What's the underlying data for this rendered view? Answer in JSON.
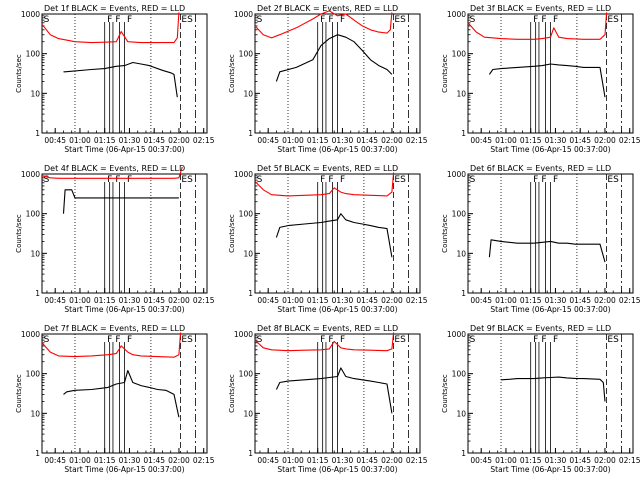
{
  "chart_data": {
    "type": "line",
    "y_scale": "log",
    "ylim": [
      1,
      1000
    ],
    "y_tick_labels": [
      "1",
      "10",
      "100",
      "1000"
    ],
    "x_unit": "minutes after 00:37:00",
    "xlim": [
      0,
      100
    ],
    "x_ticks": [
      8,
      23,
      38,
      53,
      68,
      83,
      98
    ],
    "x_tick_labels": [
      "00:45",
      "01:00",
      "01:15",
      "01:30",
      "01:45",
      "02:00",
      "02:15"
    ],
    "xlabel": "Start Time (06-Apr-15 00:37:00)",
    "ylabel": "Counts/sec",
    "markers": {
      "dotted_lines": [
        20,
        66
      ],
      "dashed_lines": [
        84,
        93
      ],
      "solid_lines": [
        38,
        41,
        43,
        47,
        50
      ]
    },
    "colors": {
      "events": "#000000",
      "lld": "#ff0000"
    },
    "panels": [
      {
        "title": "Det 1f BLACK = Events, RED = LLD",
        "markers": [
          "S",
          "F",
          "F",
          "F",
          "ES"
        ],
        "events": {
          "x": [
            13,
            14,
            30,
            38,
            45,
            50,
            55,
            60,
            65,
            73,
            78,
            80,
            82
          ],
          "y": [
            35,
            35,
            40,
            42,
            48,
            50,
            60,
            55,
            50,
            38,
            33,
            30,
            8
          ]
        },
        "lld": {
          "x": [
            0,
            5,
            10,
            20,
            30,
            38,
            45,
            48,
            52,
            60,
            65,
            72,
            80,
            82,
            83
          ],
          "y": [
            550,
            300,
            240,
            200,
            190,
            195,
            200,
            360,
            200,
            190,
            190,
            190,
            190,
            250,
            1100
          ]
        }
      },
      {
        "title": "Det 2f BLACK = Events, RED = LLD",
        "markers": [
          "S",
          "F",
          "F",
          "F",
          "ES"
        ],
        "events": {
          "x": [
            13,
            15,
            25,
            35,
            40,
            45,
            50,
            55,
            60,
            65,
            70,
            75,
            80,
            83
          ],
          "y": [
            20,
            35,
            45,
            70,
            160,
            240,
            300,
            260,
            200,
            120,
            70,
            50,
            40,
            30
          ]
        },
        "lld": {
          "x": [
            0,
            5,
            10,
            15,
            25,
            35,
            40,
            45,
            50,
            55,
            60,
            65,
            70,
            75,
            80,
            82,
            83
          ],
          "y": [
            500,
            300,
            250,
            300,
            450,
            750,
            1000,
            1200,
            900,
            1000,
            700,
            500,
            400,
            350,
            330,
            400,
            1100
          ]
        }
      },
      {
        "title": "Det 3f BLACK = Events, RED = LLD",
        "markers": [
          "S",
          "F",
          "F",
          "F",
          "ES"
        ],
        "events": {
          "x": [
            13,
            15,
            20,
            30,
            40,
            45,
            50,
            55,
            60,
            65,
            70,
            75,
            80,
            83
          ],
          "y": [
            30,
            40,
            42,
            45,
            48,
            50,
            55,
            52,
            50,
            48,
            45,
            45,
            45,
            8
          ]
        },
        "lld": {
          "x": [
            0,
            5,
            10,
            20,
            30,
            40,
            45,
            50,
            52,
            55,
            60,
            70,
            80,
            83,
            84
          ],
          "y": [
            600,
            350,
            260,
            240,
            230,
            230,
            240,
            260,
            450,
            260,
            240,
            230,
            230,
            300,
            1100
          ]
        }
      },
      {
        "title": "Det 4f BLACK = Events, RED = LLD",
        "markers": [
          "S",
          "F",
          "F",
          "F",
          "ES"
        ],
        "events": {
          "x": [
            13,
            14,
            18,
            20,
            30,
            40,
            50,
            60,
            70,
            80,
            83
          ],
          "y": [
            100,
            400,
            400,
            250,
            250,
            250,
            250,
            250,
            250,
            250,
            250
          ]
        },
        "lld": {
          "x": [
            0,
            5,
            10,
            20,
            30,
            40,
            50,
            60,
            70,
            80,
            83,
            85
          ],
          "y": [
            900,
            800,
            780,
            780,
            780,
            780,
            780,
            780,
            780,
            780,
            800,
            1500
          ]
        }
      },
      {
        "title": "Det 5f BLACK = Events, RED = LLD",
        "markers": [
          "S",
          "F",
          "F",
          "F",
          "ES"
        ],
        "events": {
          "x": [
            13,
            15,
            20,
            30,
            40,
            45,
            50,
            52,
            55,
            60,
            65,
            70,
            75,
            80,
            83
          ],
          "y": [
            25,
            45,
            50,
            55,
            60,
            65,
            70,
            100,
            70,
            60,
            55,
            50,
            45,
            42,
            8
          ]
        },
        "lld": {
          "x": [
            0,
            5,
            10,
            20,
            30,
            40,
            45,
            48,
            52,
            55,
            60,
            70,
            80,
            83,
            84
          ],
          "y": [
            650,
            400,
            300,
            280,
            290,
            300,
            320,
            450,
            350,
            320,
            300,
            290,
            280,
            350,
            1100
          ]
        }
      },
      {
        "title": "Det 6f BLACK = Events, RED = LLD",
        "markers": [
          "S",
          "F",
          "F",
          "F",
          "ES"
        ],
        "events": {
          "x": [
            13,
            14,
            20,
            30,
            40,
            45,
            50,
            55,
            60,
            65,
            70,
            75,
            80,
            83
          ],
          "y": [
            8,
            22,
            20,
            18,
            18,
            19,
            20,
            18,
            18,
            17,
            17,
            17,
            17,
            6
          ]
        },
        "lld": {
          "x": [],
          "y": []
        }
      },
      {
        "title": "Det 7f BLACK = Events, RED = LLD",
        "markers": [
          "S",
          "F",
          "F",
          "F",
          "ES"
        ],
        "events": {
          "x": [
            13,
            15,
            20,
            30,
            40,
            45,
            50,
            52,
            55,
            60,
            65,
            70,
            75,
            80,
            83
          ],
          "y": [
            30,
            35,
            38,
            40,
            45,
            55,
            60,
            120,
            60,
            50,
            45,
            40,
            38,
            30,
            8
          ]
        },
        "lld": {
          "x": [
            0,
            5,
            10,
            20,
            30,
            40,
            45,
            48,
            52,
            55,
            60,
            70,
            80,
            83,
            84
          ],
          "y": [
            600,
            350,
            280,
            270,
            280,
            300,
            320,
            500,
            350,
            300,
            280,
            270,
            260,
            300,
            1100
          ]
        }
      },
      {
        "title": "Det 8f BLACK = Events, RED = LLD",
        "markers": [
          "S",
          "F",
          "F",
          "F",
          "ES"
        ],
        "events": {
          "x": [
            13,
            15,
            20,
            30,
            40,
            45,
            50,
            52,
            55,
            60,
            65,
            70,
            75,
            80,
            83
          ],
          "y": [
            40,
            60,
            65,
            70,
            75,
            80,
            85,
            140,
            85,
            75,
            70,
            65,
            60,
            55,
            10
          ]
        },
        "lld": {
          "x": [
            0,
            5,
            10,
            20,
            30,
            40,
            45,
            48,
            52,
            55,
            60,
            70,
            80,
            83,
            84
          ],
          "y": [
            700,
            450,
            400,
            380,
            390,
            400,
            420,
            650,
            450,
            420,
            400,
            390,
            380,
            420,
            1100
          ]
        }
      },
      {
        "title": "Det 9f BLACK = Events, RED = LLD",
        "markers": [
          "S",
          "F",
          "F",
          "F",
          "ES"
        ],
        "events": {
          "x": [
            20,
            25,
            30,
            40,
            45,
            50,
            55,
            60,
            65,
            70,
            75,
            80,
            82,
            83
          ],
          "y": [
            70,
            72,
            75,
            75,
            78,
            80,
            82,
            78,
            76,
            75,
            74,
            72,
            60,
            20
          ]
        },
        "lld": {
          "x": [],
          "y": []
        }
      }
    ]
  }
}
